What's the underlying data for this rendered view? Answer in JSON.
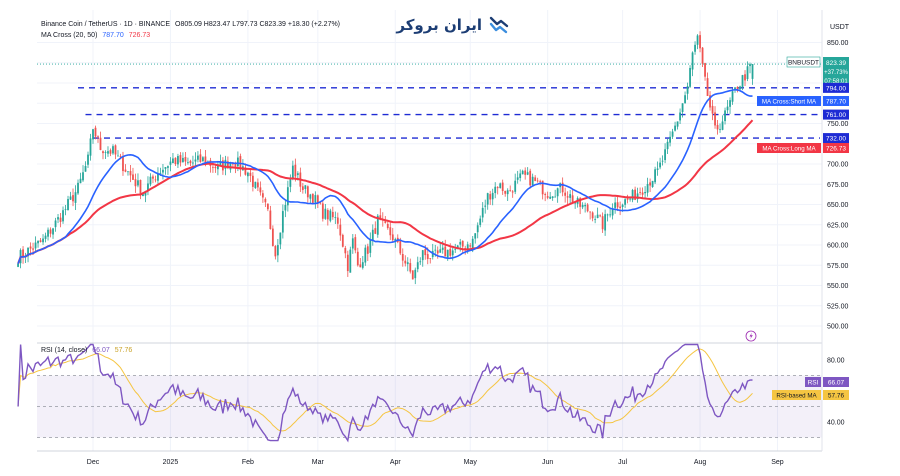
{
  "colors": {
    "candle_up": "#26a69a",
    "candle_down": "#ef5350",
    "ma_short": "#2962ff",
    "ma_long": "#f23645",
    "rsi": "#7e57c2",
    "rsi_ma": "#f5c542",
    "level_line": "#1e2bd4",
    "brand": "#1c3d74"
  },
  "header": {
    "symbol": "Binance Coin / TetherUS · 1D · BINANCE",
    "ohlc": "O805.09  H823.47  L797.73  C823.39  +18.30 (+2.27%)",
    "ma_label": "MA Cross (20, 50)",
    "ma_short_value": "787.70",
    "ma_long_value": "726.73",
    "rsi_label": "RSI (14, close)",
    "rsi_value": "66.07",
    "rsi_ma_value": "57.76"
  },
  "brand": {
    "name": "ایران بروکر",
    "icon": "handshake-icon"
  },
  "chart_data": [
    {
      "type": "candlestick",
      "title": "Binance Coin / TetherUS · 1D · BINANCE",
      "ylabel": "USDT",
      "ylim": [
        480,
        880
      ],
      "yticks": [
        500,
        525,
        550,
        575,
        600,
        625,
        650,
        675,
        700,
        725,
        750,
        775,
        800,
        825,
        850
      ],
      "ytick_labels": [
        "500.00",
        "525.00",
        "550.00",
        "575.00",
        "600.00",
        "625.00",
        "650.00",
        "675.00",
        "700.00",
        "725.00",
        "750.00",
        "775.00",
        "800.00",
        "825.00",
        "850.00"
      ],
      "x_ticks": [
        "Dec",
        "2025",
        "Feb",
        "Mar",
        "Apr",
        "May",
        "Jun",
        "Jul",
        "Aug",
        "Sep"
      ],
      "x_tick_days": [
        30,
        61,
        92,
        120,
        151,
        181,
        212,
        242,
        273,
        304
      ],
      "last_day": 294,
      "grid": true,
      "anchors": [
        [
          0,
          585
        ],
        [
          10,
          605
        ],
        [
          18,
          640
        ],
        [
          24,
          670
        ],
        [
          28,
          705
        ],
        [
          30,
          745
        ],
        [
          33,
          720
        ],
        [
          38,
          715
        ],
        [
          44,
          690
        ],
        [
          50,
          665
        ],
        [
          56,
          690
        ],
        [
          62,
          705
        ],
        [
          68,
          700
        ],
        [
          74,
          705
        ],
        [
          80,
          695
        ],
        [
          86,
          705
        ],
        [
          92,
          690
        ],
        [
          96,
          665
        ],
        [
          100,
          640
        ],
        [
          103,
          590
        ],
        [
          106,
          640
        ],
        [
          110,
          695
        ],
        [
          114,
          670
        ],
        [
          118,
          660
        ],
        [
          122,
          640
        ],
        [
          128,
          630
        ],
        [
          132,
          575
        ],
        [
          134,
          605
        ],
        [
          136,
          575
        ],
        [
          140,
          595
        ],
        [
          144,
          630
        ],
        [
          150,
          610
        ],
        [
          154,
          585
        ],
        [
          158,
          560
        ],
        [
          162,
          590
        ],
        [
          166,
          585
        ],
        [
          170,
          590
        ],
        [
          176,
          595
        ],
        [
          182,
          605
        ],
        [
          188,
          660
        ],
        [
          192,
          675
        ],
        [
          196,
          665
        ],
        [
          202,
          685
        ],
        [
          206,
          680
        ],
        [
          212,
          665
        ],
        [
          218,
          670
        ],
        [
          224,
          650
        ],
        [
          230,
          640
        ],
        [
          234,
          625
        ],
        [
          238,
          650
        ],
        [
          244,
          655
        ],
        [
          250,
          670
        ],
        [
          256,
          690
        ],
        [
          260,
          720
        ],
        [
          264,
          755
        ],
        [
          268,
          795
        ],
        [
          270,
          835
        ],
        [
          272,
          855
        ],
        [
          275,
          800
        ],
        [
          279,
          740
        ],
        [
          283,
          760
        ],
        [
          287,
          790
        ],
        [
          290,
          805
        ],
        [
          294,
          823
        ]
      ],
      "levels": [
        {
          "value": 794,
          "label": "794.00",
          "start_day": 24
        },
        {
          "value": 761,
          "label": "761.00",
          "start_day": 27
        },
        {
          "value": 732,
          "label": "732.00",
          "start_day": 30
        }
      ],
      "series": [
        {
          "name": "MA Cross:Short MA",
          "value_label": "787.70",
          "color": "#2962ff",
          "period": 20
        },
        {
          "name": "MA Cross:Long MA",
          "value_label": "726.73",
          "color": "#f23645",
          "period": 50
        }
      ],
      "last_price": {
        "symbol": "BNBUSDT",
        "price": "823.39",
        "change": "+37.73%",
        "countdown": "07:58:01"
      }
    },
    {
      "type": "line",
      "title": "RSI (14, close)",
      "ylim": [
        25,
        95
      ],
      "yticks": [
        40,
        80
      ],
      "ytick_labels": [
        "40.00",
        "80.00"
      ],
      "band_lines": [
        70,
        50,
        30
      ],
      "series": [
        {
          "name": "RSI",
          "value_label": "66.07",
          "color": "#7e57c2"
        },
        {
          "name": "RSI-based MA",
          "value_label": "57.76",
          "color": "#f5c542"
        }
      ]
    }
  ]
}
